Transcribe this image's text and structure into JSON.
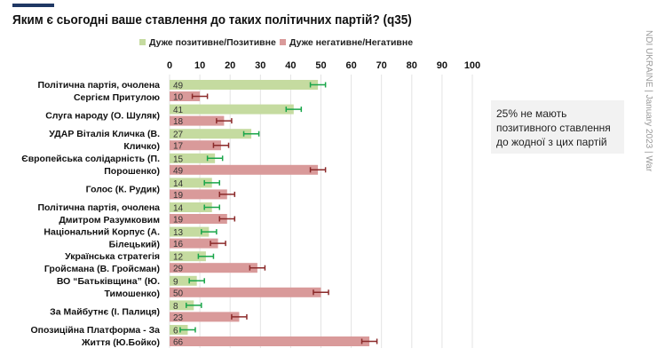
{
  "title": "Яким є сьогодні ваше ставлення до таких політичних партій? (q35)",
  "note": "25% не мають позитивного ставлення до жодної з цих партій",
  "watermark": "NDI UKRAINE | January 2023 | War",
  "chart_data": {
    "type": "bar",
    "orientation": "horizontal",
    "xlim": [
      0,
      100
    ],
    "ticks": [
      0,
      10,
      20,
      30,
      40,
      50,
      60,
      70,
      80,
      90,
      100
    ],
    "grid": true,
    "legend_position": "top",
    "categories": [
      [
        "Політична партія, очолена",
        "Сергієм Притулою"
      ],
      [
        "Слуга народу (О. Шуляк)"
      ],
      [
        "УДАР Віталія Кличка (В.",
        "Кличко)"
      ],
      [
        "Європейська солідарність (П.",
        "Порошенко)"
      ],
      [
        "Голос (К. Рудик)"
      ],
      [
        "Політична партія, очолена",
        "Дмитром Разумковим"
      ],
      [
        "Національний Корпус (А.",
        "Білецький)"
      ],
      [
        "Українська стратегія",
        "Гройсмана (В. Гройсман)"
      ],
      [
        "ВО “Батьківщина” (Ю.",
        "Тимошенко)"
      ],
      [
        "За Майбутнє (І. Палиця)"
      ],
      [
        "Опозиційна Платформа - За",
        "Життя (Ю.Бойко)"
      ]
    ],
    "series": [
      {
        "name": "Дуже позитивне/Позитивне",
        "color": "#c5dba0",
        "error_color": "#1aa64a",
        "values": [
          49,
          41,
          27,
          15,
          14,
          14,
          13,
          12,
          9,
          8,
          6
        ]
      },
      {
        "name": "Дуже негативне/Негативне",
        "color": "#d99a9a",
        "error_color": "#8b2a2a",
        "values": [
          10,
          18,
          17,
          49,
          19,
          19,
          16,
          29,
          50,
          23,
          66
        ]
      }
    ]
  }
}
